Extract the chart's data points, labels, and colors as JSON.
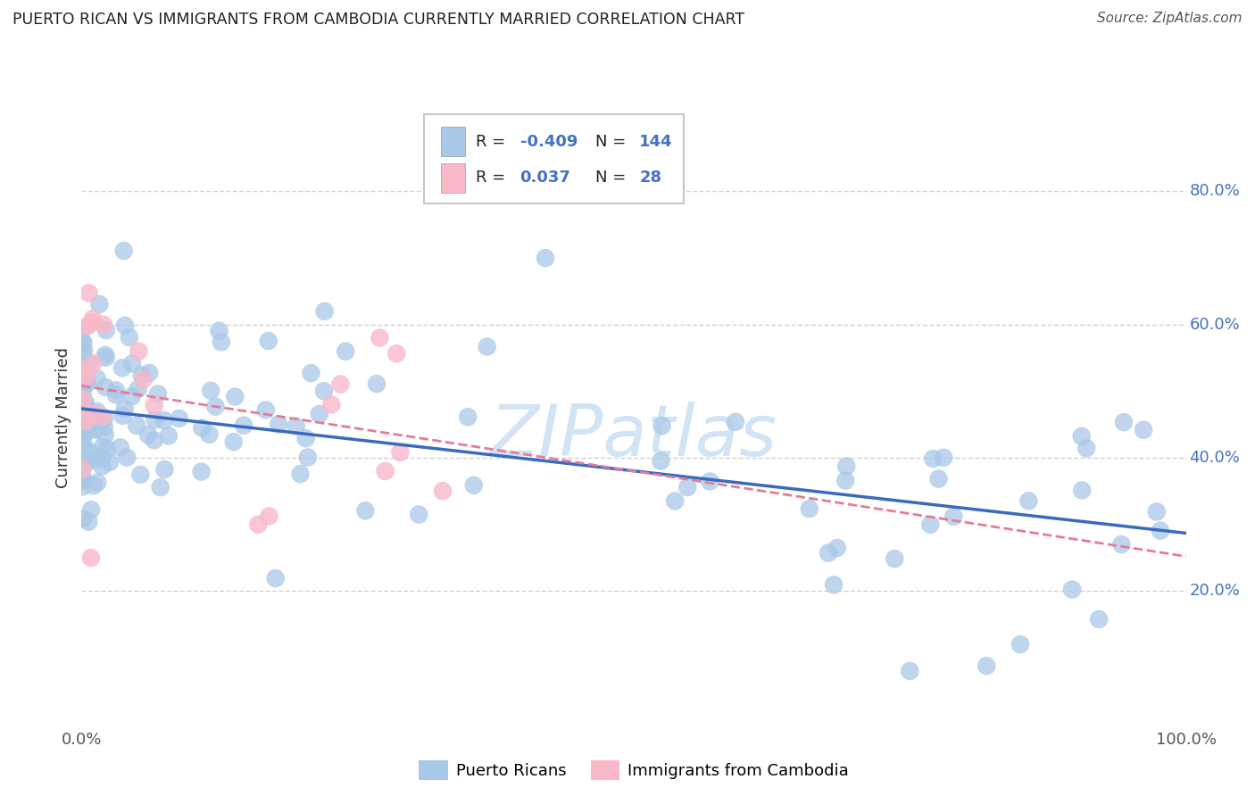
{
  "title": "PUERTO RICAN VS IMMIGRANTS FROM CAMBODIA CURRENTLY MARRIED CORRELATION CHART",
  "source": "Source: ZipAtlas.com",
  "ylabel": "Currently Married",
  "legend_pr_r": "-0.409",
  "legend_pr_n": "144",
  "legend_cam_r": "0.037",
  "legend_cam_n": "28",
  "blue_color": "#a8c8e8",
  "pink_color": "#f9b8c8",
  "blue_line_color": "#3a6abf",
  "pink_line_color": "#e87a9a",
  "text_color": "#4472c4",
  "label_color": "#333333",
  "grid_color": "#cccccc",
  "watermark": "ZIPatlas",
  "watermark_color": "#d0e4f5",
  "pr_seed": 12345,
  "cam_seed": 99999,
  "ylim_min": 0.0,
  "ylim_max": 0.92,
  "xlim_min": 0.0,
  "xlim_max": 1.0,
  "right_ytick_values": [
    0.2,
    0.4,
    0.6,
    0.8
  ],
  "right_ytick_labels": [
    "20.0%",
    "40.0%",
    "60.0%",
    "80.0%"
  ]
}
